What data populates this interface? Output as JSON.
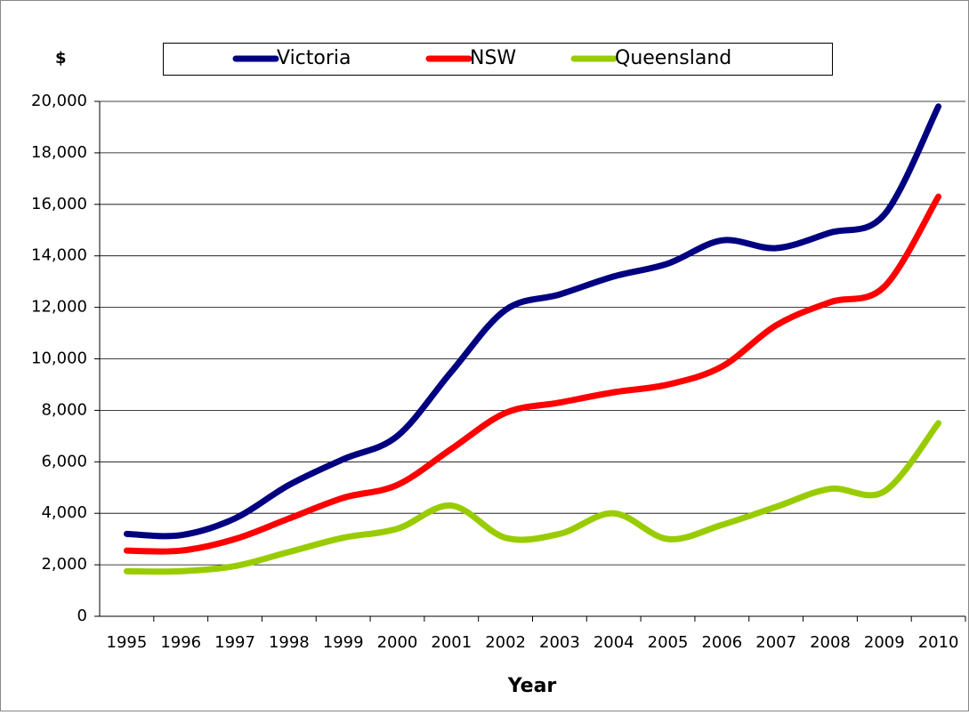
{
  "chart_data": {
    "type": "line",
    "y_label": "$",
    "x_label": "Year",
    "categories": [
      "1995",
      "1996",
      "1997",
      "1998",
      "1999",
      "2000",
      "2001",
      "2002",
      "2003",
      "2004",
      "2005",
      "2006",
      "2007",
      "2008",
      "2009",
      "2010"
    ],
    "series": [
      {
        "name": "Victoria",
        "color": "#000080",
        "values": [
          3200,
          3150,
          3800,
          5100,
          6100,
          7000,
          9500,
          11900,
          12500,
          13200,
          13700,
          14600,
          14300,
          14900,
          15600,
          19800
        ]
      },
      {
        "name": "NSW",
        "color": "#ff0000",
        "values": [
          2550,
          2550,
          3000,
          3800,
          4600,
          5100,
          6500,
          7900,
          8300,
          8700,
          9000,
          9700,
          11300,
          12200,
          12800,
          16300
        ]
      },
      {
        "name": "Queensland",
        "color": "#99cc00",
        "values": [
          1750,
          1750,
          1950,
          2500,
          3050,
          3400,
          4300,
          3050,
          3200,
          4000,
          3000,
          3550,
          4250,
          4950,
          4850,
          7500
        ]
      }
    ],
    "ylim": [
      0,
      20000
    ],
    "yticks": [
      0,
      {
        "value": 2000,
        "label": "2,000"
      },
      {
        "value": 4000,
        "label": "4,000"
      },
      {
        "value": 6000,
        "label": "6,000"
      },
      {
        "value": 8000,
        "label": "8,000"
      },
      {
        "value": 10000,
        "label": "10,000"
      },
      {
        "value": 12000,
        "label": "12,000"
      },
      {
        "value": 14000,
        "label": "14,000"
      },
      {
        "value": 16000,
        "label": "16,000"
      },
      {
        "value": 18000,
        "label": "18,000"
      },
      {
        "value": 20000,
        "label": "20,000"
      }
    ],
    "grid": true,
    "legend": "top"
  }
}
